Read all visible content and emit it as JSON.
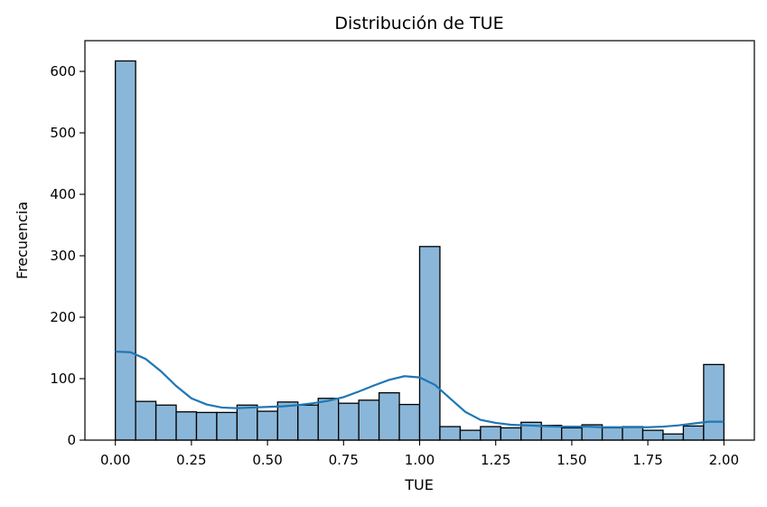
{
  "chart_data": {
    "type": "bar",
    "subtype": "histogram with kde",
    "title": "Distribución de TUE",
    "xlabel": "TUE",
    "ylabel": "Frecuencia",
    "xlim": [
      -0.1,
      2.1
    ],
    "ylim": [
      0,
      650
    ],
    "xticks": [
      0.0,
      0.25,
      0.5,
      0.75,
      1.0,
      1.25,
      1.5,
      1.75,
      2.0
    ],
    "xtick_labels": [
      "0.00",
      "0.25",
      "0.50",
      "0.75",
      "1.00",
      "1.25",
      "1.50",
      "1.75",
      "2.00"
    ],
    "yticks": [
      0,
      100,
      200,
      300,
      400,
      500,
      600
    ],
    "ytick_labels": [
      "0",
      "100",
      "200",
      "300",
      "400",
      "500",
      "600"
    ],
    "bin_start": 0.0,
    "bin_end": 2.0,
    "values": [
      617,
      63,
      57,
      46,
      45,
      45,
      57,
      47,
      62,
      57,
      68,
      60,
      65,
      77,
      58,
      315,
      22,
      16,
      22,
      20,
      29,
      24,
      20,
      25,
      20,
      22,
      16,
      10,
      23,
      123
    ],
    "kde": {
      "x": [
        0.0,
        0.05,
        0.1,
        0.15,
        0.2,
        0.25,
        0.3,
        0.35,
        0.4,
        0.45,
        0.5,
        0.55,
        0.6,
        0.65,
        0.7,
        0.75,
        0.8,
        0.85,
        0.9,
        0.95,
        1.0,
        1.05,
        1.1,
        1.15,
        1.2,
        1.25,
        1.3,
        1.35,
        1.4,
        1.45,
        1.5,
        1.55,
        1.6,
        1.65,
        1.7,
        1.75,
        1.8,
        1.85,
        1.9,
        1.95,
        2.0
      ],
      "y": [
        144,
        143,
        132,
        112,
        88,
        68,
        58,
        53,
        52,
        53,
        54,
        55,
        57,
        60,
        64,
        70,
        79,
        89,
        98,
        104,
        102,
        90,
        68,
        46,
        33,
        28,
        25,
        24,
        23,
        22,
        22,
        22,
        21,
        21,
        21,
        21,
        22,
        24,
        27,
        30,
        30
      ]
    },
    "grid": false,
    "legend": "none",
    "colors": {
      "bar_fill": "#8ab7d9",
      "bar_edge": "#000000",
      "kde_line": "#1f77b4"
    }
  }
}
